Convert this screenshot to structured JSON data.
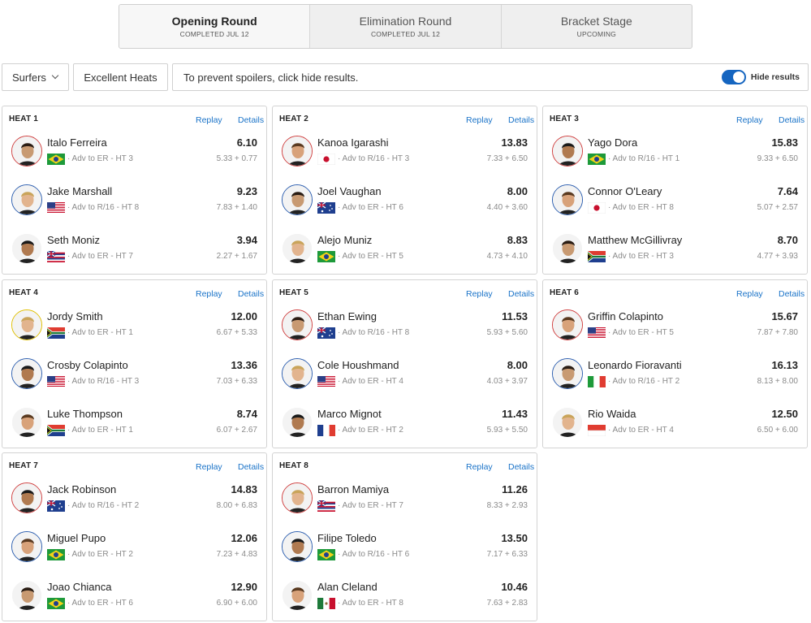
{
  "rounds": [
    {
      "name": "Opening Round",
      "status": "COMPLETED JUL 12"
    },
    {
      "name": "Elimination Round",
      "status": "COMPLETED JUL 12"
    },
    {
      "name": "Bracket Stage",
      "status": "UPCOMING"
    }
  ],
  "filters": {
    "surfers_label": "Surfers",
    "excellent_label": "Excellent Heats",
    "spoiler_text": "To prevent spoilers, click hide results.",
    "toggle_label": "Hide results",
    "toggle_on": true
  },
  "colors": {
    "accent": "#1565c0",
    "link": "#1a73c8",
    "ring_red": "#d04040",
    "ring_blue": "#2d5fb0",
    "ring_yellow": "#e0c000"
  },
  "heat_link_labels": {
    "replay": "Replay",
    "details": "Details"
  },
  "heats": [
    {
      "title": "HEAT 1",
      "surfers": [
        {
          "name": "Italo Ferreira",
          "score": "6.10",
          "adv": "· Adv to ER - HT 3",
          "breakdown": "5.33 + 0.77",
          "flag": "brazil",
          "ring": "red"
        },
        {
          "name": "Jake Marshall",
          "score": "9.23",
          "adv": "· Adv to R/16 - HT 8",
          "breakdown": "7.83 + 1.40",
          "flag": "usa",
          "ring": "blue"
        },
        {
          "name": "Seth Moniz",
          "score": "3.94",
          "adv": "· Adv to ER - HT 7",
          "breakdown": "2.27 + 1.67",
          "flag": "hawaii",
          "ring": "white"
        }
      ]
    },
    {
      "title": "HEAT 2",
      "surfers": [
        {
          "name": "Kanoa Igarashi",
          "score": "13.83",
          "adv": "· Adv to R/16 - HT 3",
          "breakdown": "7.33 + 6.50",
          "flag": "japan",
          "ring": "red"
        },
        {
          "name": "Joel Vaughan",
          "score": "8.00",
          "adv": "· Adv to ER - HT 6",
          "breakdown": "4.40 + 3.60",
          "flag": "australia",
          "ring": "blue"
        },
        {
          "name": "Alejo Muniz",
          "score": "8.83",
          "adv": "· Adv to ER - HT 5",
          "breakdown": "4.73 + 4.10",
          "flag": "brazil",
          "ring": "white"
        }
      ]
    },
    {
      "title": "HEAT 3",
      "surfers": [
        {
          "name": "Yago Dora",
          "score": "15.83",
          "adv": "· Adv to R/16 - HT 1",
          "breakdown": "9.33 + 6.50",
          "flag": "brazil",
          "ring": "red"
        },
        {
          "name": "Connor O'Leary",
          "score": "7.64",
          "adv": "· Adv to ER - HT 8",
          "breakdown": "5.07 + 2.57",
          "flag": "japan",
          "ring": "blue"
        },
        {
          "name": "Matthew McGillivray",
          "score": "8.70",
          "adv": "· Adv to ER - HT 3",
          "breakdown": "4.77 + 3.93",
          "flag": "southafrica",
          "ring": "white"
        }
      ]
    },
    {
      "title": "HEAT 4",
      "surfers": [
        {
          "name": "Jordy Smith",
          "score": "12.00",
          "adv": "· Adv to ER - HT 1",
          "breakdown": "6.67 + 5.33",
          "flag": "southafrica",
          "ring": "yellow"
        },
        {
          "name": "Crosby Colapinto",
          "score": "13.36",
          "adv": "· Adv to R/16 - HT 3",
          "breakdown": "7.03 + 6.33",
          "flag": "usa",
          "ring": "blue"
        },
        {
          "name": "Luke Thompson",
          "score": "8.74",
          "adv": "· Adv to ER - HT 1",
          "breakdown": "6.07 + 2.67",
          "flag": "southafrica",
          "ring": "white"
        }
      ]
    },
    {
      "title": "HEAT 5",
      "surfers": [
        {
          "name": "Ethan Ewing",
          "score": "11.53",
          "adv": "· Adv to R/16 - HT 8",
          "breakdown": "5.93 + 5.60",
          "flag": "australia",
          "ring": "red"
        },
        {
          "name": "Cole Houshmand",
          "score": "8.00",
          "adv": "· Adv to ER - HT 4",
          "breakdown": "4.03 + 3.97",
          "flag": "usa",
          "ring": "blue"
        },
        {
          "name": "Marco Mignot",
          "score": "11.43",
          "adv": "· Adv to ER - HT 2",
          "breakdown": "5.93 + 5.50",
          "flag": "france",
          "ring": "white"
        }
      ]
    },
    {
      "title": "HEAT 6",
      "surfers": [
        {
          "name": "Griffin Colapinto",
          "score": "15.67",
          "adv": "· Adv to ER - HT 5",
          "breakdown": "7.87 + 7.80",
          "flag": "usa",
          "ring": "red"
        },
        {
          "name": "Leonardo Fioravanti",
          "score": "16.13",
          "adv": "· Adv to R/16 - HT 2",
          "breakdown": "8.13 + 8.00",
          "flag": "italy",
          "ring": "blue"
        },
        {
          "name": "Rio Waida",
          "score": "12.50",
          "adv": "· Adv to ER - HT 4",
          "breakdown": "6.50 + 6.00",
          "flag": "indonesia",
          "ring": "white"
        }
      ]
    },
    {
      "title": "HEAT 7",
      "surfers": [
        {
          "name": "Jack Robinson",
          "score": "14.83",
          "adv": "· Adv to R/16 - HT 2",
          "breakdown": "8.00 + 6.83",
          "flag": "australia",
          "ring": "red"
        },
        {
          "name": "Miguel Pupo",
          "score": "12.06",
          "adv": "· Adv to ER - HT 2",
          "breakdown": "7.23 + 4.83",
          "flag": "brazil",
          "ring": "blue"
        },
        {
          "name": "Joao Chianca",
          "score": "12.90",
          "adv": "· Adv to ER - HT 6",
          "breakdown": "6.90 + 6.00",
          "flag": "brazil",
          "ring": "white"
        }
      ]
    },
    {
      "title": "HEAT 8",
      "surfers": [
        {
          "name": "Barron Mamiya",
          "score": "11.26",
          "adv": "· Adv to ER - HT 7",
          "breakdown": "8.33 + 2.93",
          "flag": "hawaii",
          "ring": "red"
        },
        {
          "name": "Filipe Toledo",
          "score": "13.50",
          "adv": "· Adv to R/16 - HT 6",
          "breakdown": "7.17 + 6.33",
          "flag": "brazil",
          "ring": "blue"
        },
        {
          "name": "Alan Cleland",
          "score": "10.46",
          "adv": "· Adv to ER - HT 8",
          "breakdown": "7.63 + 2.83",
          "flag": "mexico",
          "ring": "white"
        }
      ]
    }
  ]
}
